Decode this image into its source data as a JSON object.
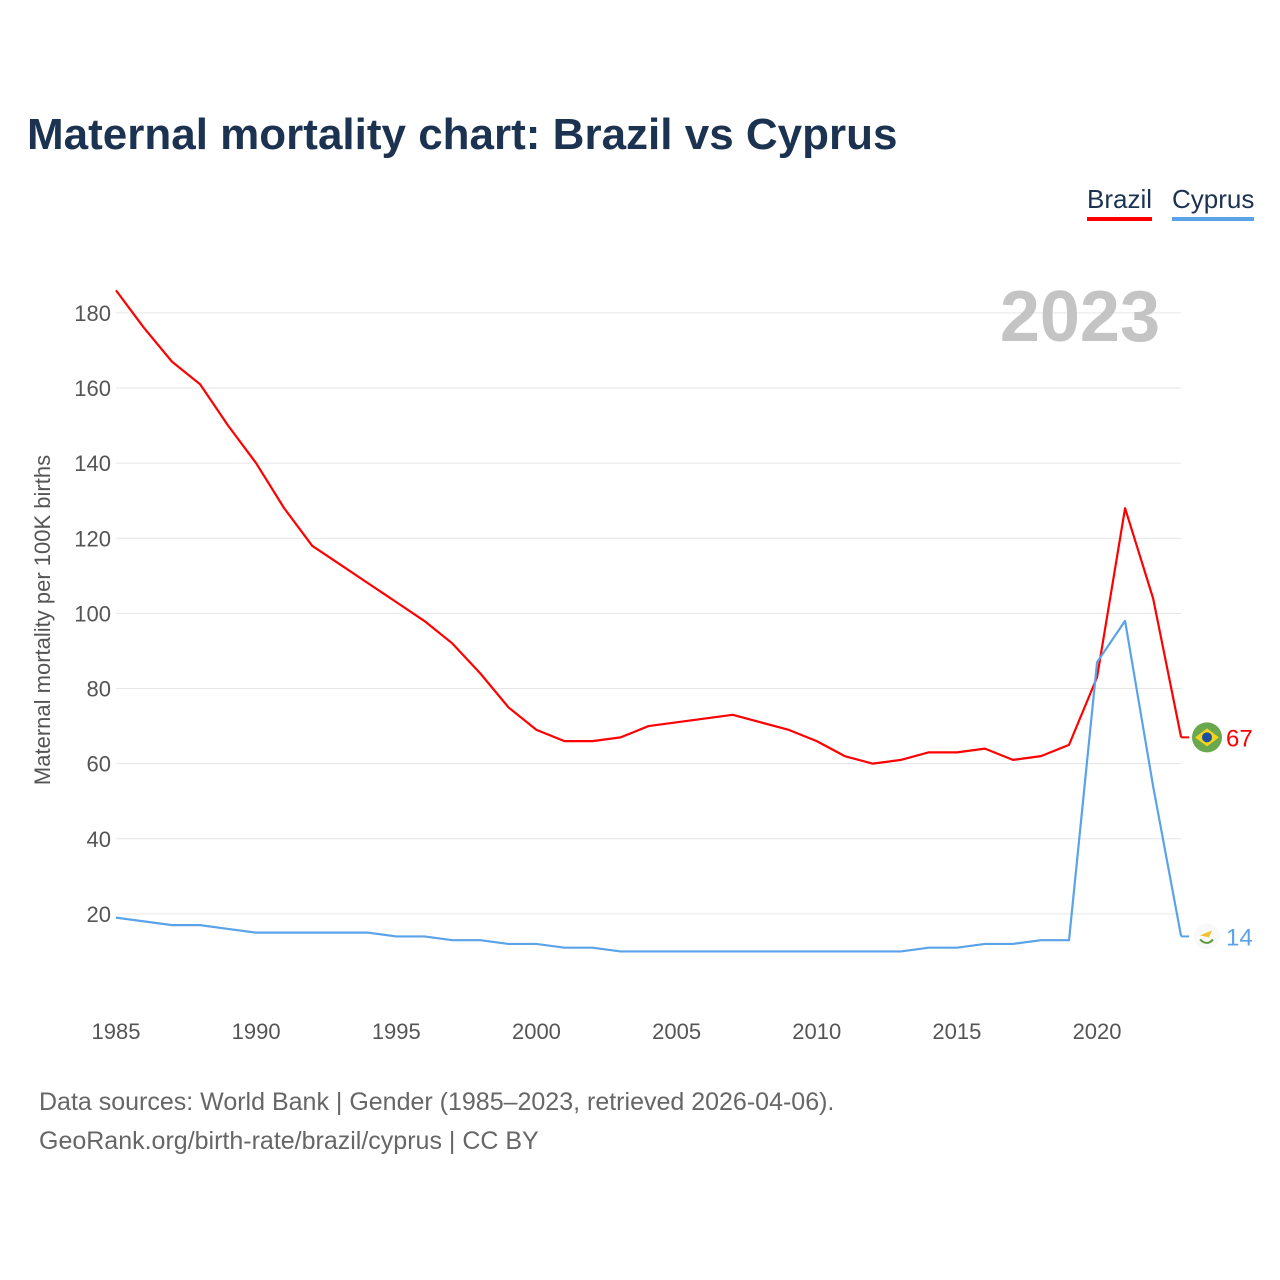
{
  "chart_data": {
    "type": "line",
    "title": "Maternal mortality chart: Brazil vs Cyprus",
    "ylabel": "Maternal mortality per 100K births",
    "xlabel": "",
    "year_label": "2023",
    "ylim": [
      0,
      190
    ],
    "xlim": [
      1985,
      2023
    ],
    "yticks": [
      20,
      40,
      60,
      80,
      100,
      120,
      140,
      160,
      180
    ],
    "xticks": [
      1985,
      1990,
      1995,
      2000,
      2005,
      2010,
      2015,
      2020
    ],
    "grid": true,
    "legend_position": "top-right",
    "x": [
      1985,
      1986,
      1987,
      1988,
      1989,
      1990,
      1991,
      1992,
      1993,
      1994,
      1995,
      1996,
      1997,
      1998,
      1999,
      2000,
      2001,
      2002,
      2003,
      2004,
      2005,
      2006,
      2007,
      2008,
      2009,
      2010,
      2011,
      2012,
      2013,
      2014,
      2015,
      2016,
      2017,
      2018,
      2019,
      2020,
      2021,
      2022,
      2023
    ],
    "series": [
      {
        "name": "Brazil",
        "color": "#ff0000",
        "end_label": "67",
        "values": [
          186,
          176,
          167,
          161,
          150,
          140,
          128,
          118,
          113,
          108,
          103,
          98,
          92,
          84,
          75,
          69,
          66,
          66,
          67,
          70,
          71,
          72,
          73,
          71,
          69,
          66,
          62,
          60,
          61,
          63,
          63,
          64,
          61,
          62,
          65,
          83,
          128,
          104,
          67
        ]
      },
      {
        "name": "Cyprus",
        "color": "#5ba3e8",
        "end_label": "14",
        "values": [
          19,
          18,
          17,
          17,
          16,
          15,
          15,
          15,
          15,
          15,
          14,
          14,
          13,
          13,
          12,
          12,
          11,
          11,
          10,
          10,
          10,
          10,
          10,
          10,
          10,
          10,
          10,
          10,
          10,
          11,
          11,
          12,
          12,
          13,
          13,
          87,
          98,
          54,
          14
        ]
      }
    ]
  },
  "footer": {
    "line1": "Data sources: World Bank | Gender (1985–2023, retrieved 2026-04-06).",
    "line2": "GeoRank.org/birth-rate/brazil/cyprus | CC BY"
  }
}
